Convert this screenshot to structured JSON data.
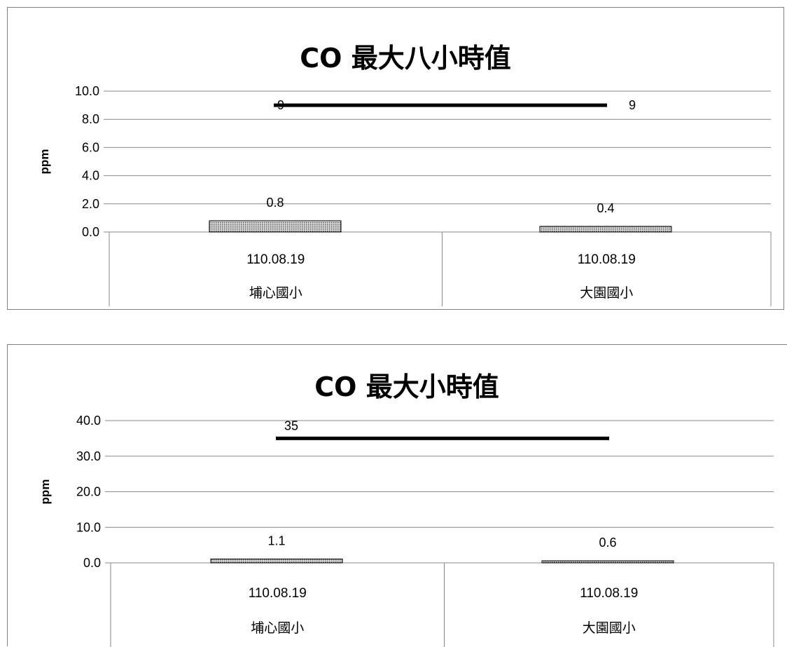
{
  "chart_data": [
    {
      "type": "bar",
      "title": "CO 最大八小時值",
      "ylabel": "ppm",
      "xlabel": "",
      "ylim": [
        0,
        10
      ],
      "yticks": [
        "0.0",
        "2.0",
        "4.0",
        "6.0",
        "8.0",
        "10.0"
      ],
      "ytick_values": [
        0,
        2,
        4,
        6,
        8,
        10
      ],
      "categories": [
        {
          "date": "110.08.19",
          "site": "埔心國小"
        },
        {
          "date": "110.08.19",
          "site": "大園國小"
        }
      ],
      "series": [
        {
          "type": "bar",
          "values": [
            0.8,
            0.4
          ],
          "labels": [
            "0.8",
            "0.4"
          ]
        },
        {
          "type": "line",
          "values": [
            9,
            9
          ],
          "labels": [
            "9",
            "9"
          ],
          "color": "#000000"
        }
      ],
      "grid": true,
      "bar_color": "#a0a0a0"
    },
    {
      "type": "bar",
      "title": "CO 最大小時值",
      "ylabel": "ppm",
      "xlabel": "",
      "ylim": [
        0,
        40
      ],
      "yticks": [
        "0.0",
        "10.0",
        "20.0",
        "30.0",
        "40.0"
      ],
      "ytick_values": [
        0,
        10,
        20,
        30,
        40
      ],
      "categories": [
        {
          "date": "110.08.19",
          "site": "埔心國小"
        },
        {
          "date": "110.08.19",
          "site": "大園國小"
        }
      ],
      "series": [
        {
          "type": "bar",
          "values": [
            1.1,
            0.6
          ],
          "labels": [
            "1.1",
            "0.6"
          ]
        },
        {
          "type": "line",
          "values": [
            35,
            35
          ],
          "labels": [
            "35"
          ],
          "color": "#000000"
        }
      ],
      "grid": true,
      "bar_color": "#a0a0a0"
    }
  ]
}
